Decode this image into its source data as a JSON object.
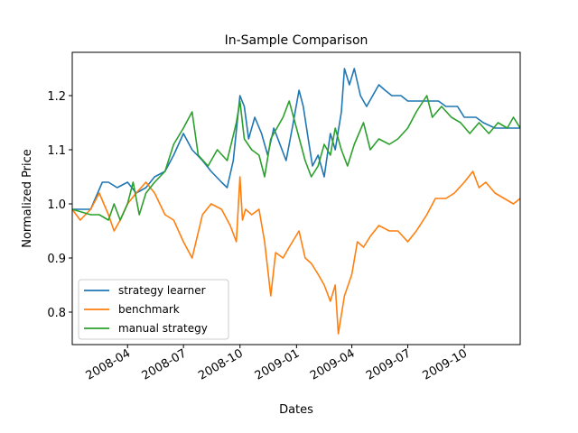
{
  "chart_data": {
    "type": "line",
    "title": "In-Sample Comparison",
    "xlabel": "Dates",
    "ylabel": "Normalized Price",
    "x_range": [
      "2008-01-02",
      "2009-12-31"
    ],
    "ylim": [
      0.74,
      1.28
    ],
    "x_ticks": [
      "2008-04-01",
      "2008-07-01",
      "2008-10-01",
      "2009-01-01",
      "2009-04-01",
      "2009-07-01",
      "2009-10-01"
    ],
    "x_tick_labels": [
      "2008-04",
      "2008-07",
      "2008-10",
      "2009-01",
      "2009-04",
      "2009-07",
      "2009-10"
    ],
    "y_ticks": [
      0.8,
      0.9,
      1.0,
      1.1,
      1.2
    ],
    "y_tick_labels": [
      "0.8",
      "0.9",
      "1.0",
      "1.1",
      "1.2"
    ],
    "grid": false,
    "legend": "lower-left",
    "series": [
      {
        "name": "strategy learner",
        "color": "#1f77b4",
        "points": [
          [
            "2008-01-02",
            0.99
          ],
          [
            "2008-02-01",
            0.99
          ],
          [
            "2008-02-20",
            1.04
          ],
          [
            "2008-03-01",
            1.04
          ],
          [
            "2008-03-15",
            1.03
          ],
          [
            "2008-04-01",
            1.04
          ],
          [
            "2008-04-15",
            1.02
          ],
          [
            "2008-05-01",
            1.03
          ],
          [
            "2008-05-15",
            1.05
          ],
          [
            "2008-06-01",
            1.06
          ],
          [
            "2008-06-15",
            1.09
          ],
          [
            "2008-07-01",
            1.13
          ],
          [
            "2008-07-15",
            1.1
          ],
          [
            "2008-08-01",
            1.08
          ],
          [
            "2008-08-15",
            1.06
          ],
          [
            "2008-09-01",
            1.04
          ],
          [
            "2008-09-10",
            1.03
          ],
          [
            "2008-09-20",
            1.08
          ],
          [
            "2008-10-01",
            1.2
          ],
          [
            "2008-10-08",
            1.18
          ],
          [
            "2008-10-15",
            1.12
          ],
          [
            "2008-10-25",
            1.16
          ],
          [
            "2008-11-05",
            1.13
          ],
          [
            "2008-11-15",
            1.09
          ],
          [
            "2008-11-25",
            1.14
          ],
          [
            "2008-12-05",
            1.11
          ],
          [
            "2008-12-15",
            1.08
          ],
          [
            "2008-12-25",
            1.14
          ],
          [
            "2009-01-05",
            1.21
          ],
          [
            "2009-01-12",
            1.18
          ],
          [
            "2009-01-20",
            1.12
          ],
          [
            "2009-01-27",
            1.07
          ],
          [
            "2009-02-05",
            1.09
          ],
          [
            "2009-02-15",
            1.05
          ],
          [
            "2009-02-25",
            1.13
          ],
          [
            "2009-03-05",
            1.1
          ],
          [
            "2009-03-15",
            1.17
          ],
          [
            "2009-03-20",
            1.25
          ],
          [
            "2009-03-28",
            1.22
          ],
          [
            "2009-04-05",
            1.25
          ],
          [
            "2009-04-15",
            1.2
          ],
          [
            "2009-04-25",
            1.18
          ],
          [
            "2009-05-05",
            1.2
          ],
          [
            "2009-05-15",
            1.22
          ],
          [
            "2009-05-25",
            1.21
          ],
          [
            "2009-06-05",
            1.2
          ],
          [
            "2009-06-20",
            1.2
          ],
          [
            "2009-07-01",
            1.19
          ],
          [
            "2009-07-20",
            1.19
          ],
          [
            "2009-08-05",
            1.19
          ],
          [
            "2009-08-20",
            1.19
          ],
          [
            "2009-09-01",
            1.18
          ],
          [
            "2009-09-20",
            1.18
          ],
          [
            "2009-10-01",
            1.16
          ],
          [
            "2009-10-20",
            1.16
          ],
          [
            "2009-11-01",
            1.15
          ],
          [
            "2009-11-20",
            1.14
          ],
          [
            "2009-12-31",
            1.14
          ]
        ]
      },
      {
        "name": "benchmark",
        "color": "#ff7f0e",
        "points": [
          [
            "2008-01-02",
            0.99
          ],
          [
            "2008-01-15",
            0.97
          ],
          [
            "2008-02-01",
            0.99
          ],
          [
            "2008-02-15",
            1.02
          ],
          [
            "2008-03-01",
            0.98
          ],
          [
            "2008-03-10",
            0.95
          ],
          [
            "2008-03-20",
            0.97
          ],
          [
            "2008-04-01",
            1.0
          ],
          [
            "2008-04-15",
            1.02
          ],
          [
            "2008-05-01",
            1.04
          ],
          [
            "2008-05-15",
            1.02
          ],
          [
            "2008-06-01",
            0.98
          ],
          [
            "2008-06-15",
            0.97
          ],
          [
            "2008-07-01",
            0.93
          ],
          [
            "2008-07-15",
            0.9
          ],
          [
            "2008-08-01",
            0.98
          ],
          [
            "2008-08-15",
            1.0
          ],
          [
            "2008-09-01",
            0.99
          ],
          [
            "2008-09-15",
            0.96
          ],
          [
            "2008-09-25",
            0.93
          ],
          [
            "2008-10-01",
            1.05
          ],
          [
            "2008-10-05",
            0.97
          ],
          [
            "2008-10-10",
            0.99
          ],
          [
            "2008-10-20",
            0.98
          ],
          [
            "2008-11-01",
            0.99
          ],
          [
            "2008-11-10",
            0.93
          ],
          [
            "2008-11-20",
            0.83
          ],
          [
            "2008-11-28",
            0.91
          ],
          [
            "2008-12-10",
            0.9
          ],
          [
            "2008-12-20",
            0.92
          ],
          [
            "2009-01-05",
            0.95
          ],
          [
            "2009-01-15",
            0.9
          ],
          [
            "2009-01-25",
            0.89
          ],
          [
            "2009-02-05",
            0.87
          ],
          [
            "2009-02-15",
            0.85
          ],
          [
            "2009-02-25",
            0.82
          ],
          [
            "2009-03-05",
            0.85
          ],
          [
            "2009-03-10",
            0.76
          ],
          [
            "2009-03-20",
            0.83
          ],
          [
            "2009-04-01",
            0.87
          ],
          [
            "2009-04-10",
            0.93
          ],
          [
            "2009-04-20",
            0.92
          ],
          [
            "2009-05-01",
            0.94
          ],
          [
            "2009-05-15",
            0.96
          ],
          [
            "2009-06-01",
            0.95
          ],
          [
            "2009-06-15",
            0.95
          ],
          [
            "2009-07-01",
            0.93
          ],
          [
            "2009-07-15",
            0.95
          ],
          [
            "2009-08-01",
            0.98
          ],
          [
            "2009-08-15",
            1.01
          ],
          [
            "2009-09-01",
            1.01
          ],
          [
            "2009-09-15",
            1.02
          ],
          [
            "2009-10-01",
            1.04
          ],
          [
            "2009-10-15",
            1.06
          ],
          [
            "2009-10-25",
            1.03
          ],
          [
            "2009-11-05",
            1.04
          ],
          [
            "2009-11-20",
            1.02
          ],
          [
            "2009-12-05",
            1.01
          ],
          [
            "2009-12-20",
            1.0
          ],
          [
            "2009-12-31",
            1.01
          ]
        ]
      },
      {
        "name": "manual strategy",
        "color": "#2ca02c",
        "points": [
          [
            "2008-01-02",
            0.99
          ],
          [
            "2008-02-01",
            0.98
          ],
          [
            "2008-02-15",
            0.98
          ],
          [
            "2008-03-01",
            0.97
          ],
          [
            "2008-03-10",
            1.0
          ],
          [
            "2008-03-20",
            0.97
          ],
          [
            "2008-04-01",
            1.0
          ],
          [
            "2008-04-10",
            1.04
          ],
          [
            "2008-04-20",
            0.98
          ],
          [
            "2008-05-01",
            1.02
          ],
          [
            "2008-05-15",
            1.04
          ],
          [
            "2008-06-01",
            1.06
          ],
          [
            "2008-06-15",
            1.11
          ],
          [
            "2008-07-01",
            1.14
          ],
          [
            "2008-07-15",
            1.17
          ],
          [
            "2008-07-25",
            1.09
          ],
          [
            "2008-08-10",
            1.07
          ],
          [
            "2008-08-25",
            1.1
          ],
          [
            "2008-09-10",
            1.08
          ],
          [
            "2008-09-25",
            1.15
          ],
          [
            "2008-10-01",
            1.19
          ],
          [
            "2008-10-08",
            1.12
          ],
          [
            "2008-10-20",
            1.1
          ],
          [
            "2008-11-01",
            1.09
          ],
          [
            "2008-11-10",
            1.05
          ],
          [
            "2008-11-20",
            1.12
          ],
          [
            "2008-11-30",
            1.14
          ],
          [
            "2008-12-10",
            1.16
          ],
          [
            "2008-12-20",
            1.19
          ],
          [
            "2009-01-01",
            1.14
          ],
          [
            "2009-01-15",
            1.08
          ],
          [
            "2009-01-25",
            1.05
          ],
          [
            "2009-02-05",
            1.07
          ],
          [
            "2009-02-15",
            1.11
          ],
          [
            "2009-02-25",
            1.09
          ],
          [
            "2009-03-05",
            1.14
          ],
          [
            "2009-03-15",
            1.1
          ],
          [
            "2009-03-25",
            1.07
          ],
          [
            "2009-04-05",
            1.11
          ],
          [
            "2009-04-20",
            1.15
          ],
          [
            "2009-05-01",
            1.1
          ],
          [
            "2009-05-15",
            1.12
          ],
          [
            "2009-06-01",
            1.11
          ],
          [
            "2009-06-15",
            1.12
          ],
          [
            "2009-07-01",
            1.14
          ],
          [
            "2009-07-15",
            1.17
          ],
          [
            "2009-08-01",
            1.2
          ],
          [
            "2009-08-10",
            1.16
          ],
          [
            "2009-08-25",
            1.18
          ],
          [
            "2009-09-10",
            1.16
          ],
          [
            "2009-09-25",
            1.15
          ],
          [
            "2009-10-10",
            1.13
          ],
          [
            "2009-10-25",
            1.15
          ],
          [
            "2009-11-10",
            1.13
          ],
          [
            "2009-11-25",
            1.15
          ],
          [
            "2009-12-10",
            1.14
          ],
          [
            "2009-12-20",
            1.16
          ],
          [
            "2009-12-31",
            1.14
          ]
        ]
      }
    ]
  }
}
